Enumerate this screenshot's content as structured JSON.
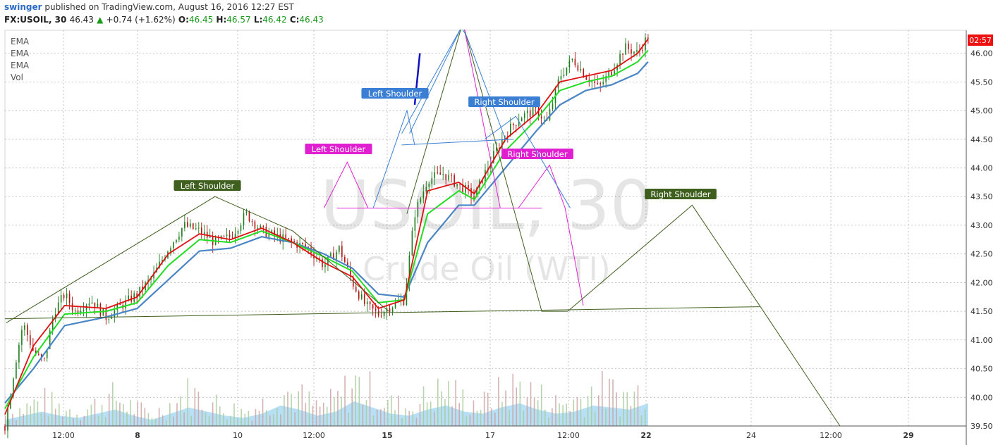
{
  "header": {
    "author": "swinger",
    "published_text": "published on TradingView.com, August 16, 2016 12:27 EST",
    "symbol": "FX:USOIL, 30",
    "last": "46.43",
    "change": "+0.74 (+1.62%)",
    "o_label": "O:",
    "o_value": "46.45",
    "h_label": "H:",
    "h_value": "46.57",
    "l_label": "L:",
    "l_value": "46.42",
    "c_label": "C:",
    "c_value": "46.43"
  },
  "legend": [
    "EMA",
    "EMA",
    "EMA",
    "Vol"
  ],
  "watermark": {
    "symbol": "USOIL, 30",
    "name": "Crude Oil (WTI)"
  },
  "price_badge": "02:57",
  "colors": {
    "candle_up": "#1d7d1d",
    "candle_down": "#b11414",
    "ema_fast": "#e01010",
    "ema_mid": "#22dd22",
    "ema_slow": "#4a86c5",
    "pattern_green": "#3f5f1e",
    "pattern_magenta": "#e020d0",
    "pattern_blue": "#3b7fd4",
    "volume_area": "#9fd4f2",
    "badge": "#ee1111"
  },
  "chart_data": {
    "type": "candlestick",
    "y_axis": {
      "range": [
        39.5,
        46.4
      ],
      "ticks": [
        "46.00",
        "45.50",
        "45.00",
        "44.50",
        "44.00",
        "43.50",
        "43.00",
        "42.50",
        "42.00",
        "41.50",
        "41.00",
        "40.50",
        "40.00",
        "39.50"
      ]
    },
    "x_axis": {
      "ticks": [
        "12:00",
        "8",
        "10",
        "12:00",
        "15",
        "17",
        "12:00",
        "22",
        "24",
        "12:00",
        "29"
      ],
      "bold_ticks": [
        "8",
        "15",
        "22",
        "29"
      ]
    },
    "price_path": [
      [
        0,
        39.5
      ],
      [
        0.4,
        40.6
      ],
      [
        0.7,
        41.3
      ],
      [
        1.1,
        40.8
      ],
      [
        1.5,
        40.6
      ],
      [
        1.9,
        41.5
      ],
      [
        2.3,
        41.8
      ],
      [
        2.7,
        41.5
      ],
      [
        3.3,
        41.7
      ],
      [
        3.9,
        41.4
      ],
      [
        4.5,
        41.6
      ],
      [
        5.1,
        41.8
      ],
      [
        5.7,
        42.1
      ],
      [
        6.3,
        42.6
      ],
      [
        6.9,
        43.0
      ],
      [
        7.5,
        42.9
      ],
      [
        8.1,
        42.7
      ],
      [
        8.7,
        42.8
      ],
      [
        9.3,
        43.2
      ],
      [
        9.9,
        42.9
      ],
      [
        10.5,
        42.8
      ],
      [
        11.1,
        42.7
      ],
      [
        11.7,
        42.6
      ],
      [
        12.3,
        42.3
      ],
      [
        12.9,
        42.6
      ],
      [
        13.4,
        42.0
      ],
      [
        13.9,
        41.6
      ],
      [
        14.4,
        41.45
      ],
      [
        14.9,
        41.6
      ],
      [
        15.4,
        41.7
      ],
      [
        15.8,
        43.2
      ],
      [
        16.3,
        43.8
      ],
      [
        16.9,
        43.9
      ],
      [
        17.5,
        43.7
      ],
      [
        18.1,
        43.5
      ],
      [
        18.7,
        44.1
      ],
      [
        19.3,
        44.6
      ],
      [
        19.9,
        44.9
      ],
      [
        20.5,
        45.0
      ],
      [
        20.9,
        44.8
      ],
      [
        21.4,
        45.6
      ],
      [
        21.9,
        45.9
      ],
      [
        22.4,
        45.6
      ],
      [
        22.9,
        45.4
      ],
      [
        23.4,
        45.7
      ],
      [
        23.9,
        46.1
      ],
      [
        24.4,
        46.0
      ],
      [
        24.8,
        46.3
      ]
    ],
    "ema_fast": [
      [
        0,
        39.7
      ],
      [
        1.1,
        40.9
      ],
      [
        2.3,
        41.6
      ],
      [
        3.9,
        41.55
      ],
      [
        5.1,
        41.75
      ],
      [
        6.3,
        42.5
      ],
      [
        7.5,
        42.85
      ],
      [
        8.7,
        42.75
      ],
      [
        9.9,
        42.95
      ],
      [
        11.1,
        42.7
      ],
      [
        12.3,
        42.35
      ],
      [
        13.4,
        42.1
      ],
      [
        14.4,
        41.55
      ],
      [
        15.4,
        41.7
      ],
      [
        16.3,
        43.6
      ],
      [
        17.5,
        43.75
      ],
      [
        18.1,
        43.55
      ],
      [
        19.3,
        44.5
      ],
      [
        20.5,
        44.95
      ],
      [
        21.4,
        45.5
      ],
      [
        22.4,
        45.6
      ],
      [
        23.4,
        45.7
      ],
      [
        24.4,
        46.0
      ],
      [
        24.8,
        46.25
      ]
    ],
    "ema_mid": [
      [
        0,
        39.8
      ],
      [
        1.1,
        40.7
      ],
      [
        2.3,
        41.45
      ],
      [
        3.9,
        41.5
      ],
      [
        5.1,
        41.65
      ],
      [
        6.3,
        42.3
      ],
      [
        7.5,
        42.75
      ],
      [
        8.7,
        42.7
      ],
      [
        9.9,
        42.9
      ],
      [
        11.1,
        42.7
      ],
      [
        12.3,
        42.45
      ],
      [
        13.4,
        42.2
      ],
      [
        14.4,
        41.65
      ],
      [
        15.4,
        41.7
      ],
      [
        16.3,
        43.2
      ],
      [
        17.5,
        43.6
      ],
      [
        18.1,
        43.45
      ],
      [
        19.3,
        44.3
      ],
      [
        20.5,
        44.85
      ],
      [
        21.4,
        45.35
      ],
      [
        22.4,
        45.5
      ],
      [
        23.4,
        45.6
      ],
      [
        24.4,
        45.85
      ],
      [
        24.8,
        46.05
      ]
    ],
    "ema_slow": [
      [
        0,
        39.9
      ],
      [
        1.1,
        40.5
      ],
      [
        2.3,
        41.25
      ],
      [
        3.9,
        41.4
      ],
      [
        5.1,
        41.55
      ],
      [
        6.3,
        42.05
      ],
      [
        7.5,
        42.55
      ],
      [
        8.7,
        42.6
      ],
      [
        9.9,
        42.8
      ],
      [
        11.1,
        42.7
      ],
      [
        12.3,
        42.5
      ],
      [
        13.4,
        42.25
      ],
      [
        14.4,
        41.8
      ],
      [
        15.4,
        41.75
      ],
      [
        16.3,
        42.7
      ],
      [
        17.5,
        43.35
      ],
      [
        18.1,
        43.35
      ],
      [
        19.3,
        44.0
      ],
      [
        20.5,
        44.65
      ],
      [
        21.4,
        45.1
      ],
      [
        22.4,
        45.35
      ],
      [
        23.4,
        45.45
      ],
      [
        24.4,
        45.65
      ],
      [
        24.8,
        45.85
      ]
    ],
    "volume": [
      3,
      5,
      7,
      5,
      4,
      6,
      8,
      5,
      3,
      6,
      9,
      7,
      5,
      4,
      6,
      10,
      8,
      5,
      7,
      12,
      9,
      6,
      5,
      8,
      10,
      7,
      6,
      9,
      11,
      8,
      6,
      7,
      10,
      9,
      8,
      11
    ],
    "volume_range": [
      0,
      60
    ],
    "annotations": [
      {
        "label": "Left Shoulder",
        "color": "pattern_green",
        "points": [
          [
            0.05,
            41.3
          ],
          [
            8.1,
            43.5
          ],
          [
            11.1,
            42.9
          ],
          [
            14.8,
            41.5
          ]
        ]
      },
      {
        "label": "Right Shoulder",
        "color": "pattern_green",
        "points": [
          [
            21.7,
            41.5
          ],
          [
            26.5,
            43.35
          ],
          [
            29.1,
            41.6
          ],
          [
            32.2,
            39.5
          ]
        ]
      },
      {
        "label": "Left Shoulder",
        "color": "pattern_magenta",
        "points": [
          [
            12.3,
            43.3
          ],
          [
            13.2,
            44.1
          ],
          [
            14.0,
            43.3
          ]
        ]
      },
      {
        "label": "Right Shoulder",
        "color": "pattern_magenta",
        "points": [
          [
            19.8,
            43.3
          ],
          [
            21.0,
            44.05
          ],
          [
            21.6,
            43.3
          ]
        ]
      },
      {
        "label": "Left Shoulder",
        "color": "pattern_blue",
        "points": [
          [
            14.2,
            43.3
          ],
          [
            15.5,
            45.0
          ],
          [
            15.8,
            44.4
          ]
        ]
      },
      {
        "label": "Right Shoulder",
        "color": "pattern_blue",
        "points": [
          [
            18.5,
            44.5
          ],
          [
            19.7,
            44.9
          ],
          [
            21.8,
            43.3
          ]
        ]
      }
    ]
  }
}
